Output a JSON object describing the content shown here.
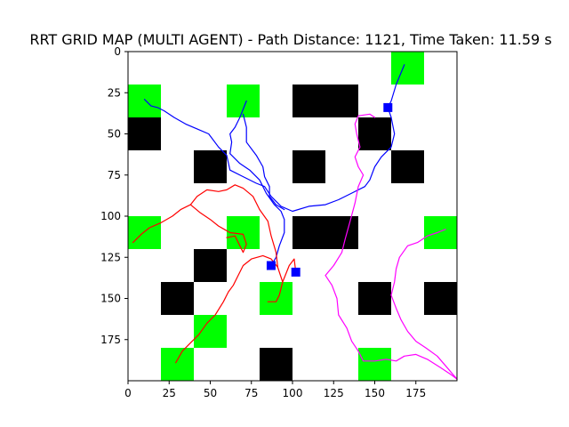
{
  "chart_data": {
    "type": "heatmap",
    "title": "RRT GRID MAP (MULTI AGENT) - Path Distance: 1121, Time Taken: 11.59 s",
    "xlabel": "",
    "ylabel": "",
    "xlim": [
      0,
      200
    ],
    "ylim": [
      200,
      0
    ],
    "grid": false,
    "xticks": [
      0,
      25,
      50,
      75,
      100,
      125,
      150,
      175
    ],
    "yticks": [
      0,
      25,
      50,
      75,
      100,
      125,
      150,
      175
    ],
    "xtick_labels": [
      "0",
      "25",
      "50",
      "75",
      "100",
      "125",
      "150",
      "175"
    ],
    "ytick_labels": [
      "0",
      "25",
      "50",
      "75",
      "100",
      "125",
      "150",
      "175"
    ],
    "cell_size": 20,
    "colors": {
      "obstacle": "#000000",
      "goal": "#00ff00",
      "free": "#ffffff",
      "marker": "#0000ff",
      "path_blue": "#0000ff",
      "path_red": "#ff0000",
      "path_magenta": "#ff00ff"
    },
    "obstacles": [
      [
        100,
        20
      ],
      [
        120,
        20
      ],
      [
        0,
        40
      ],
      [
        140,
        40
      ],
      [
        40,
        60
      ],
      [
        100,
        60
      ],
      [
        160,
        60
      ],
      [
        100,
        100
      ],
      [
        120,
        100
      ],
      [
        40,
        120
      ],
      [
        20,
        140
      ],
      [
        140,
        140
      ],
      [
        180,
        140
      ],
      [
        80,
        180
      ]
    ],
    "goals": [
      [
        160,
        0
      ],
      [
        0,
        20
      ],
      [
        60,
        20
      ],
      [
        0,
        100
      ],
      [
        60,
        100
      ],
      [
        180,
        100
      ],
      [
        80,
        140
      ],
      [
        40,
        160
      ],
      [
        20,
        180
      ],
      [
        140,
        180
      ]
    ],
    "markers": [
      [
        158,
        34
      ],
      [
        87,
        130
      ],
      [
        102,
        134
      ]
    ],
    "series": [
      {
        "color": "path_blue",
        "points": [
          [
            168,
            8
          ],
          [
            163,
            20
          ],
          [
            160,
            30
          ],
          [
            158,
            34
          ],
          [
            160,
            40
          ],
          [
            162,
            50
          ],
          [
            160,
            58
          ],
          [
            154,
            64
          ],
          [
            150,
            70
          ],
          [
            147,
            78
          ],
          [
            144,
            82
          ],
          [
            136,
            86
          ],
          [
            128,
            90
          ],
          [
            120,
            93
          ],
          [
            110,
            94
          ],
          [
            100,
            97
          ],
          [
            93,
            94
          ],
          [
            87,
            88
          ],
          [
            83,
            82
          ],
          [
            78,
            80
          ],
          [
            70,
            76
          ],
          [
            62,
            72
          ],
          [
            60,
            63
          ],
          [
            55,
            58
          ],
          [
            49,
            50
          ],
          [
            42,
            47
          ],
          [
            35,
            44
          ],
          [
            28,
            40
          ],
          [
            22,
            36
          ],
          [
            18,
            34
          ],
          [
            14,
            33
          ],
          [
            10,
            29
          ]
        ]
      },
      {
        "color": "path_blue",
        "points": [
          [
            72,
            30
          ],
          [
            68,
            40
          ],
          [
            65,
            46
          ],
          [
            62,
            50
          ],
          [
            63,
            55
          ],
          [
            62,
            62
          ],
          [
            68,
            68
          ],
          [
            74,
            72
          ],
          [
            80,
            78
          ],
          [
            84,
            86
          ],
          [
            89,
            93
          ],
          [
            93,
            97
          ],
          [
            95,
            102
          ],
          [
            95,
            110
          ],
          [
            92,
            118
          ],
          [
            90,
            125
          ],
          [
            87,
            130
          ]
        ]
      },
      {
        "color": "path_blue",
        "points": [
          [
            70,
            38
          ],
          [
            72,
            46
          ],
          [
            72,
            55
          ],
          [
            78,
            63
          ],
          [
            82,
            70
          ],
          [
            83,
            76
          ],
          [
            86,
            82
          ],
          [
            86,
            88
          ],
          [
            90,
            93
          ],
          [
            95,
            96
          ]
        ]
      },
      {
        "color": "path_red",
        "points": [
          [
            29,
            189
          ],
          [
            33,
            182
          ],
          [
            38,
            177
          ],
          [
            43,
            172
          ],
          [
            48,
            165
          ],
          [
            53,
            160
          ],
          [
            58,
            152
          ],
          [
            61,
            146
          ],
          [
            64,
            142
          ],
          [
            67,
            136
          ],
          [
            70,
            130
          ],
          [
            75,
            126
          ],
          [
            82,
            124
          ],
          [
            87,
            126
          ],
          [
            91,
            131
          ],
          [
            94,
            140
          ],
          [
            92,
            148
          ],
          [
            90,
            152
          ],
          [
            85,
            152
          ]
        ]
      },
      {
        "color": "path_red",
        "points": [
          [
            91,
            131
          ],
          [
            90,
            122
          ],
          [
            87,
            112
          ],
          [
            85,
            103
          ],
          [
            80,
            96
          ],
          [
            76,
            88
          ],
          [
            70,
            83
          ],
          [
            65,
            81
          ],
          [
            60,
            84
          ],
          [
            55,
            85
          ],
          [
            48,
            84
          ],
          [
            42,
            88
          ],
          [
            38,
            93
          ],
          [
            32,
            96
          ],
          [
            27,
            100
          ],
          [
            20,
            104
          ],
          [
            13,
            107
          ],
          [
            8,
            111
          ],
          [
            3,
            116
          ]
        ]
      },
      {
        "color": "path_red",
        "points": [
          [
            94,
            140
          ],
          [
            98,
            130
          ],
          [
            101,
            126
          ],
          [
            102,
            134
          ]
        ]
      },
      {
        "color": "path_red",
        "points": [
          [
            38,
            93
          ],
          [
            44,
            98
          ],
          [
            50,
            102
          ],
          [
            55,
            106
          ],
          [
            62,
            110
          ],
          [
            70,
            111
          ],
          [
            72,
            117
          ],
          [
            70,
            122
          ],
          [
            65,
            112
          ],
          [
            60,
            113
          ]
        ]
      },
      {
        "color": "path_magenta",
        "points": [
          [
            140,
            82
          ],
          [
            143,
            75
          ],
          [
            140,
            70
          ],
          [
            138,
            64
          ],
          [
            141,
            58
          ],
          [
            139,
            50
          ],
          [
            138,
            44
          ],
          [
            140,
            39
          ],
          [
            147,
            38
          ],
          [
            150,
            40
          ]
        ]
      },
      {
        "color": "path_magenta",
        "points": [
          [
            140,
            82
          ],
          [
            138,
            92
          ],
          [
            135,
            103
          ],
          [
            132,
            114
          ],
          [
            130,
            122
          ],
          [
            125,
            130
          ],
          [
            120,
            136
          ],
          [
            124,
            142
          ],
          [
            127,
            150
          ],
          [
            128,
            160
          ],
          [
            133,
            168
          ],
          [
            136,
            176
          ],
          [
            140,
            182
          ],
          [
            143,
            188
          ],
          [
            150,
            188
          ],
          [
            157,
            187
          ],
          [
            163,
            188
          ],
          [
            168,
            185
          ],
          [
            175,
            184
          ],
          [
            182,
            187
          ],
          [
            190,
            192
          ],
          [
            196,
            196
          ],
          [
            200,
            199
          ]
        ]
      },
      {
        "color": "path_magenta",
        "points": [
          [
            200,
            199
          ],
          [
            194,
            192
          ],
          [
            188,
            185
          ],
          [
            181,
            180
          ],
          [
            175,
            176
          ],
          [
            170,
            170
          ],
          [
            166,
            163
          ],
          [
            163,
            156
          ],
          [
            160,
            148
          ],
          [
            162,
            140
          ],
          [
            163,
            132
          ],
          [
            165,
            125
          ],
          [
            170,
            118
          ],
          [
            176,
            116
          ],
          [
            182,
            112
          ],
          [
            188,
            110
          ],
          [
            193,
            108
          ]
        ]
      }
    ]
  }
}
